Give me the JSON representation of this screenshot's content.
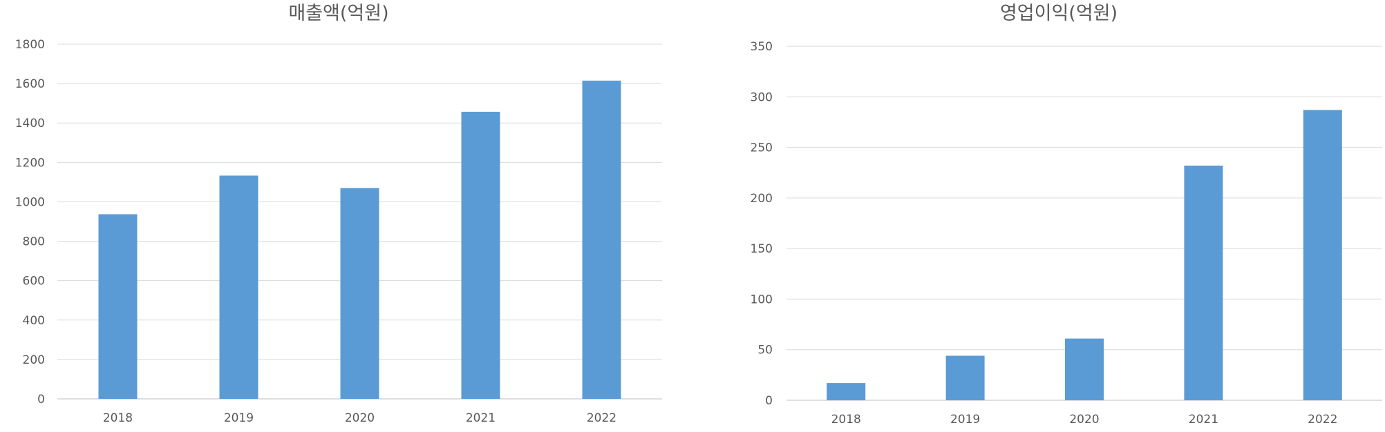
{
  "chart_data": [
    {
      "type": "bar",
      "title": "매출액(억원)",
      "categories": [
        "2018",
        "2019",
        "2020",
        "2021",
        "2022"
      ],
      "values": [
        937,
        1133,
        1070,
        1457,
        1615
      ],
      "ylim": [
        0,
        1800
      ],
      "yticks": [
        0,
        200,
        400,
        600,
        800,
        1000,
        1200,
        1400,
        1600,
        1800
      ],
      "grid": true,
      "color": "#5B9BD5"
    },
    {
      "type": "bar",
      "title": "영업이익(억원)",
      "categories": [
        "2018",
        "2019",
        "2020",
        "2021",
        "2022"
      ],
      "values": [
        17,
        44,
        61,
        232,
        287
      ],
      "ylim": [
        0,
        350
      ],
      "yticks": [
        0,
        50,
        100,
        150,
        200,
        250,
        300,
        350
      ],
      "grid": true,
      "color": "#5B9BD5"
    }
  ]
}
